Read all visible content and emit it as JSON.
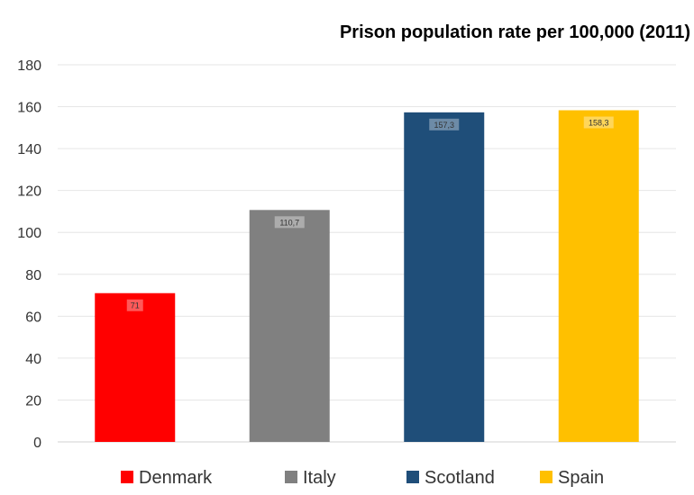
{
  "chart_data": {
    "type": "bar",
    "title": "Prison population rate per 100,000 (2011)",
    "categories": [
      "Denmark",
      "Italy",
      "Scotland",
      "Spain"
    ],
    "values": [
      71,
      110.7,
      157.3,
      158.3
    ],
    "data_labels": [
      "71",
      "110,7",
      "157,3",
      "158,3"
    ],
    "colors": [
      "#ff0000",
      "#808080",
      "#1f4e79",
      "#ffc000"
    ],
    "ylim": [
      0,
      180
    ],
    "yticks": [
      "0",
      "20",
      "40",
      "60",
      "80",
      "100",
      "120",
      "140",
      "160",
      "180"
    ],
    "grid": true,
    "legend_position": "bottom",
    "xlabel": "",
    "ylabel": ""
  }
}
